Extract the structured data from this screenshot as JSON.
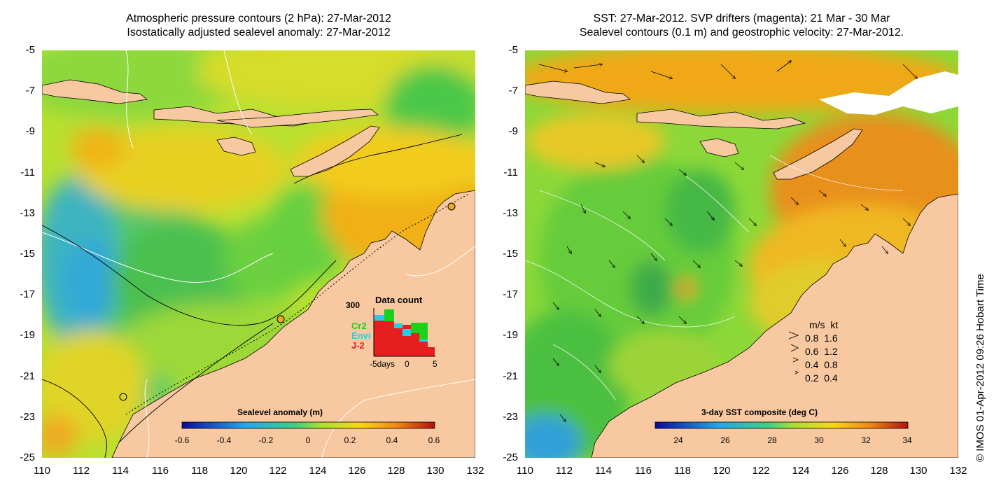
{
  "left_panel": {
    "title_line1": "Atmospheric pressure contours (2 hPa): 27-Mar-2012",
    "title_line2": "Isostatically adjusted sealevel anomaly: 27-Mar-2012",
    "colorbar_label": "Sealevel anomaly (m)",
    "colorbar_ticks": [
      "-0.6",
      "-0.4",
      "-0.2",
      "0",
      "0.2",
      "0.4",
      "0.6"
    ],
    "inset": {
      "title": "Data count",
      "ymax_label": "300",
      "series": [
        "Cr2",
        "Envi",
        "J-2"
      ],
      "series_colors": [
        "#19d219",
        "#1ed2e6",
        "#e61e1e"
      ],
      "x_labels": [
        "-5days",
        "0",
        "5"
      ]
    }
  },
  "right_panel": {
    "title_line1": "SST: 27-Mar-2012. SVP drifters (magenta): 21 Mar - 30 Mar",
    "title_line2": "Sealevel contours (0.1 m) and geostrophic velocity: 27-Mar-2012.",
    "colorbar_label": "3-day SST composite (deg C)",
    "colorbar_ticks": [
      "24",
      "26",
      "28",
      "30",
      "32",
      "34"
    ],
    "velocity_legend": {
      "header_ms": "m/s",
      "header_kt": "kt",
      "rows": [
        {
          "ms": "0.8",
          "kt": "1.6"
        },
        {
          "ms": "0.6",
          "kt": "1.2"
        },
        {
          "ms": "0.4",
          "kt": "0.8"
        },
        {
          "ms": "0.2",
          "kt": "0.4"
        }
      ]
    }
  },
  "axes": {
    "y_ticks": [
      "-5",
      "-7",
      "-9",
      "-11",
      "-13",
      "-15",
      "-17",
      "-19",
      "-21",
      "-23",
      "-25"
    ],
    "x_ticks": [
      "110",
      "112",
      "114",
      "116",
      "118",
      "120",
      "122",
      "124",
      "126",
      "128",
      "130",
      "132"
    ]
  },
  "credit": "© IMOS 01-Apr-2012 09:26 Hobart Time",
  "colors": {
    "land": "#f8c8a0",
    "ocean_green": "#5ed23a",
    "ocean_yellow": "#f2d21e",
    "ocean_orange": "#f0a614"
  }
}
